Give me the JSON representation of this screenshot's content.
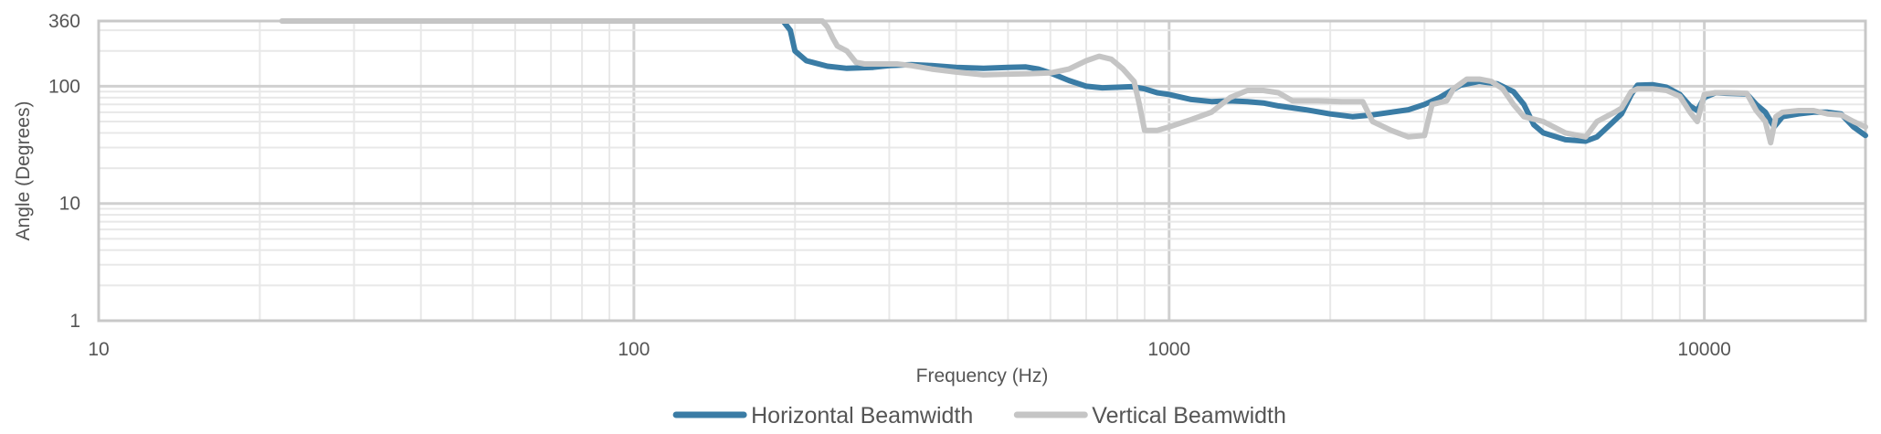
{
  "chart_data": {
    "type": "line",
    "title": "",
    "xlabel": "Frequency (Hz)",
    "ylabel": "Angle (Degrees)",
    "xscale": "log",
    "yscale": "log",
    "xlim": [
      10,
      20000
    ],
    "ylim": [
      1,
      360
    ],
    "x_ticks": [
      {
        "value": 10,
        "label": "10"
      },
      {
        "value": 100,
        "label": "100"
      },
      {
        "value": 1000,
        "label": "1000"
      },
      {
        "value": 10000,
        "label": "10000"
      }
    ],
    "y_ticks": [
      {
        "value": 1,
        "label": "1"
      },
      {
        "value": 10,
        "label": "10"
      },
      {
        "value": 100,
        "label": "100"
      },
      {
        "value": 360,
        "label": "360"
      }
    ],
    "grid": true,
    "legend_position": "bottom-center",
    "series": [
      {
        "name": "Horizontal Beamwidth",
        "color": "#3a7ca5",
        "points": [
          [
            190,
            360
          ],
          [
            196,
            300
          ],
          [
            200,
            200
          ],
          [
            210,
            165
          ],
          [
            230,
            148
          ],
          [
            250,
            142
          ],
          [
            280,
            145
          ],
          [
            300,
            150
          ],
          [
            330,
            153
          ],
          [
            360,
            150
          ],
          [
            400,
            145
          ],
          [
            450,
            142
          ],
          [
            500,
            145
          ],
          [
            540,
            146
          ],
          [
            570,
            140
          ],
          [
            600,
            130
          ],
          [
            650,
            112
          ],
          [
            700,
            100
          ],
          [
            750,
            97
          ],
          [
            800,
            98
          ],
          [
            850,
            99
          ],
          [
            900,
            95
          ],
          [
            950,
            88
          ],
          [
            1000,
            85
          ],
          [
            1100,
            77
          ],
          [
            1200,
            74
          ],
          [
            1300,
            75
          ],
          [
            1400,
            74
          ],
          [
            1500,
            72
          ],
          [
            1600,
            68
          ],
          [
            1800,
            63
          ],
          [
            2000,
            58
          ],
          [
            2200,
            55
          ],
          [
            2400,
            57
          ],
          [
            2600,
            60
          ],
          [
            2800,
            63
          ],
          [
            3000,
            70
          ],
          [
            3200,
            80
          ],
          [
            3500,
            102
          ],
          [
            3800,
            110
          ],
          [
            4100,
            105
          ],
          [
            4400,
            90
          ],
          [
            4600,
            70
          ],
          [
            4800,
            47
          ],
          [
            5000,
            40
          ],
          [
            5500,
            35
          ],
          [
            6000,
            34
          ],
          [
            6300,
            37
          ],
          [
            6700,
            48
          ],
          [
            7000,
            58
          ],
          [
            7300,
            85
          ],
          [
            7500,
            102
          ],
          [
            8000,
            103
          ],
          [
            8500,
            98
          ],
          [
            9000,
            85
          ],
          [
            9400,
            68
          ],
          [
            9700,
            62
          ],
          [
            10000,
            80
          ],
          [
            10500,
            88
          ],
          [
            11000,
            87
          ],
          [
            12000,
            86
          ],
          [
            12500,
            70
          ],
          [
            13000,
            60
          ],
          [
            13500,
            45
          ],
          [
            14000,
            55
          ],
          [
            15000,
            58
          ],
          [
            16000,
            60
          ],
          [
            17000,
            60
          ],
          [
            18000,
            58
          ],
          [
            19000,
            45
          ],
          [
            20000,
            38
          ]
        ]
      },
      {
        "name": "Vertical Beamwidth",
        "color": "#c5c5c5",
        "points": [
          [
            22,
            360
          ],
          [
            50,
            360
          ],
          [
            100,
            360
          ],
          [
            150,
            360
          ],
          [
            200,
            360
          ],
          [
            225,
            360
          ],
          [
            230,
            320
          ],
          [
            235,
            260
          ],
          [
            240,
            220
          ],
          [
            250,
            200
          ],
          [
            260,
            160
          ],
          [
            270,
            155
          ],
          [
            290,
            155
          ],
          [
            310,
            155
          ],
          [
            330,
            150
          ],
          [
            360,
            140
          ],
          [
            400,
            132
          ],
          [
            450,
            125
          ],
          [
            500,
            127
          ],
          [
            550,
            128
          ],
          [
            600,
            130
          ],
          [
            650,
            140
          ],
          [
            700,
            165
          ],
          [
            740,
            180
          ],
          [
            780,
            170
          ],
          [
            820,
            140
          ],
          [
            860,
            110
          ],
          [
            880,
            70
          ],
          [
            900,
            42
          ],
          [
            950,
            42
          ],
          [
            1000,
            45
          ],
          [
            1100,
            52
          ],
          [
            1200,
            60
          ],
          [
            1300,
            80
          ],
          [
            1400,
            92
          ],
          [
            1500,
            92
          ],
          [
            1600,
            88
          ],
          [
            1700,
            75
          ],
          [
            1900,
            75
          ],
          [
            2100,
            74
          ],
          [
            2300,
            74
          ],
          [
            2400,
            50
          ],
          [
            2600,
            42
          ],
          [
            2800,
            37
          ],
          [
            3000,
            38
          ],
          [
            3100,
            70
          ],
          [
            3300,
            75
          ],
          [
            3400,
            95
          ],
          [
            3600,
            115
          ],
          [
            3800,
            115
          ],
          [
            4000,
            110
          ],
          [
            4200,
            95
          ],
          [
            4400,
            70
          ],
          [
            4600,
            55
          ],
          [
            5000,
            50
          ],
          [
            5500,
            40
          ],
          [
            6000,
            37
          ],
          [
            6300,
            50
          ],
          [
            6800,
            60
          ],
          [
            7000,
            65
          ],
          [
            7300,
            90
          ],
          [
            7500,
            95
          ],
          [
            8000,
            95
          ],
          [
            8500,
            92
          ],
          [
            9000,
            82
          ],
          [
            9400,
            60
          ],
          [
            9700,
            50
          ],
          [
            10000,
            85
          ],
          [
            10500,
            88
          ],
          [
            11000,
            88
          ],
          [
            12000,
            87
          ],
          [
            12500,
            62
          ],
          [
            13000,
            50
          ],
          [
            13300,
            33
          ],
          [
            13600,
            55
          ],
          [
            14000,
            60
          ],
          [
            15000,
            62
          ],
          [
            16000,
            62
          ],
          [
            17000,
            58
          ],
          [
            18000,
            57
          ],
          [
            19000,
            50
          ],
          [
            20000,
            45
          ]
        ]
      }
    ]
  }
}
